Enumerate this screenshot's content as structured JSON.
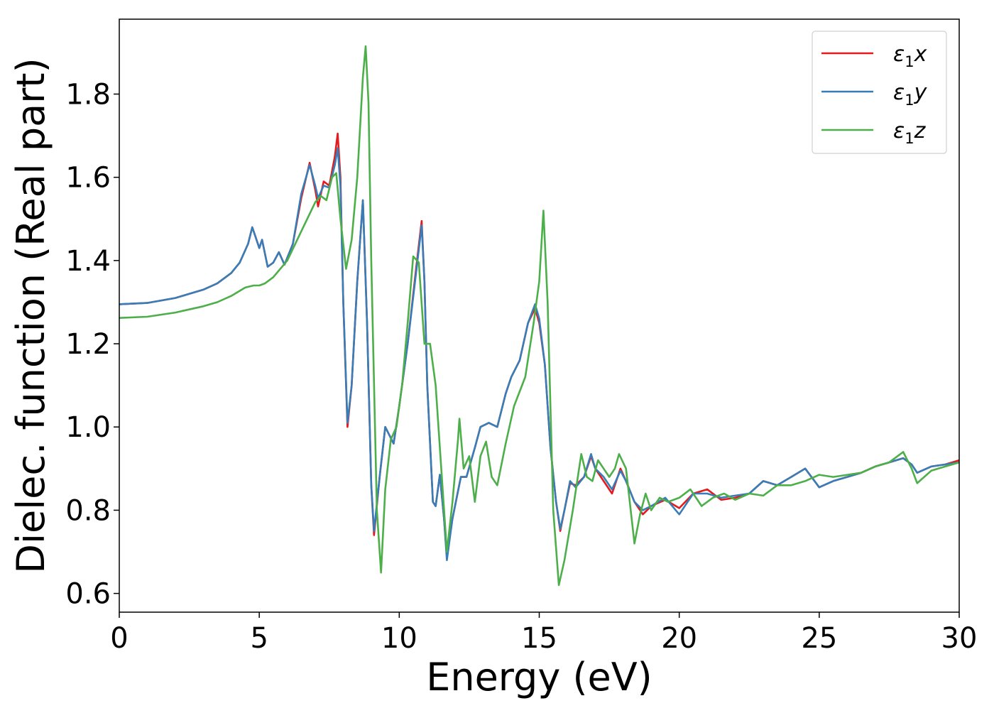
{
  "chart_data": {
    "type": "line",
    "title": "",
    "xlabel": "Energy (eV)",
    "ylabel": "Dielec. function (Real part)",
    "xlim": [
      0,
      30
    ],
    "ylim": [
      0.555,
      1.98
    ],
    "xticks": [
      0,
      5,
      10,
      15,
      20,
      25,
      30
    ],
    "xtick_labels": [
      "0",
      "5",
      "10",
      "15",
      "20",
      "25",
      "30"
    ],
    "yticks": [
      0.6,
      0.8,
      1.0,
      1.2,
      1.4,
      1.6,
      1.8
    ],
    "ytick_labels": [
      "0.6",
      "0.8",
      "1.0",
      "1.2",
      "1.4",
      "1.6",
      "1.8"
    ],
    "grid": false,
    "legend_position": "top-right",
    "series": [
      {
        "name": "ε₁x",
        "legend": {
          "base": "ε",
          "sub": "1",
          "suffix": "x"
        },
        "color": "#e41a1c",
        "points": [
          [
            0,
            1.295
          ],
          [
            1,
            1.298
          ],
          [
            2,
            1.31
          ],
          [
            3,
            1.33
          ],
          [
            3.5,
            1.345
          ],
          [
            4,
            1.37
          ],
          [
            4.3,
            1.395
          ],
          [
            4.6,
            1.44
          ],
          [
            4.75,
            1.48
          ],
          [
            4.85,
            1.46
          ],
          [
            5,
            1.43
          ],
          [
            5.1,
            1.45
          ],
          [
            5.3,
            1.385
          ],
          [
            5.5,
            1.395
          ],
          [
            5.7,
            1.42
          ],
          [
            5.9,
            1.39
          ],
          [
            6.2,
            1.44
          ],
          [
            6.5,
            1.55
          ],
          [
            6.8,
            1.635
          ],
          [
            7.0,
            1.57
          ],
          [
            7.1,
            1.53
          ],
          [
            7.3,
            1.59
          ],
          [
            7.5,
            1.58
          ],
          [
            7.7,
            1.65
          ],
          [
            7.8,
            1.705
          ],
          [
            7.9,
            1.6
          ],
          [
            8.0,
            1.3
          ],
          [
            8.15,
            1.0
          ],
          [
            8.3,
            1.1
          ],
          [
            8.5,
            1.35
          ],
          [
            8.7,
            1.545
          ],
          [
            8.85,
            1.25
          ],
          [
            9.0,
            0.86
          ],
          [
            9.1,
            0.74
          ],
          [
            9.3,
            0.88
          ],
          [
            9.5,
            1.0
          ],
          [
            9.8,
            0.96
          ],
          [
            10.0,
            1.05
          ],
          [
            10.3,
            1.2
          ],
          [
            10.6,
            1.38
          ],
          [
            10.8,
            1.495
          ],
          [
            10.9,
            1.35
          ],
          [
            11.0,
            1.1
          ],
          [
            11.2,
            0.82
          ],
          [
            11.3,
            0.81
          ],
          [
            11.45,
            0.885
          ],
          [
            11.6,
            0.78
          ],
          [
            11.7,
            0.69
          ],
          [
            11.9,
            0.78
          ],
          [
            12.2,
            0.88
          ],
          [
            12.4,
            0.88
          ],
          [
            12.7,
            0.95
          ],
          [
            12.9,
            1.0
          ],
          [
            13.2,
            1.01
          ],
          [
            13.5,
            1.0
          ],
          [
            13.8,
            1.08
          ],
          [
            14.0,
            1.12
          ],
          [
            14.3,
            1.16
          ],
          [
            14.6,
            1.25
          ],
          [
            14.85,
            1.285
          ],
          [
            15.0,
            1.25
          ],
          [
            15.2,
            1.15
          ],
          [
            15.4,
            0.95
          ],
          [
            15.6,
            0.82
          ],
          [
            15.75,
            0.75
          ],
          [
            15.9,
            0.8
          ],
          [
            16.1,
            0.865
          ],
          [
            16.3,
            0.86
          ],
          [
            16.6,
            0.88
          ],
          [
            16.85,
            0.93
          ],
          [
            17.0,
            0.9
          ],
          [
            17.3,
            0.87
          ],
          [
            17.6,
            0.84
          ],
          [
            17.9,
            0.9
          ],
          [
            18.1,
            0.87
          ],
          [
            18.4,
            0.82
          ],
          [
            18.7,
            0.79
          ],
          [
            19.0,
            0.81
          ],
          [
            19.5,
            0.825
          ],
          [
            20.0,
            0.805
          ],
          [
            20.5,
            0.84
          ],
          [
            21.0,
            0.85
          ],
          [
            21.5,
            0.825
          ],
          [
            22.0,
            0.83
          ],
          [
            22.5,
            0.84
          ],
          [
            23.0,
            0.87
          ],
          [
            23.5,
            0.86
          ],
          [
            24.0,
            0.88
          ],
          [
            24.5,
            0.9
          ],
          [
            25.0,
            0.855
          ],
          [
            25.5,
            0.87
          ],
          [
            26.0,
            0.88
          ],
          [
            26.5,
            0.89
          ],
          [
            27.0,
            0.905
          ],
          [
            27.5,
            0.915
          ],
          [
            28.0,
            0.925
          ],
          [
            28.3,
            0.91
          ],
          [
            28.5,
            0.89
          ],
          [
            29.0,
            0.905
          ],
          [
            29.5,
            0.91
          ],
          [
            30.0,
            0.92
          ]
        ]
      },
      {
        "name": "ε₁y",
        "legend": {
          "base": "ε",
          "sub": "1",
          "suffix": "y"
        },
        "color": "#377eb8",
        "points": [
          [
            0,
            1.295
          ],
          [
            1,
            1.298
          ],
          [
            2,
            1.31
          ],
          [
            3,
            1.33
          ],
          [
            3.5,
            1.345
          ],
          [
            4,
            1.37
          ],
          [
            4.3,
            1.395
          ],
          [
            4.6,
            1.44
          ],
          [
            4.75,
            1.48
          ],
          [
            4.85,
            1.46
          ],
          [
            5,
            1.43
          ],
          [
            5.1,
            1.45
          ],
          [
            5.3,
            1.385
          ],
          [
            5.5,
            1.395
          ],
          [
            5.7,
            1.42
          ],
          [
            5.9,
            1.39
          ],
          [
            6.2,
            1.44
          ],
          [
            6.5,
            1.56
          ],
          [
            6.8,
            1.63
          ],
          [
            7.0,
            1.58
          ],
          [
            7.1,
            1.55
          ],
          [
            7.3,
            1.58
          ],
          [
            7.5,
            1.575
          ],
          [
            7.7,
            1.63
          ],
          [
            7.8,
            1.67
          ],
          [
            7.9,
            1.58
          ],
          [
            8.0,
            1.3
          ],
          [
            8.15,
            1.01
          ],
          [
            8.3,
            1.1
          ],
          [
            8.5,
            1.35
          ],
          [
            8.7,
            1.545
          ],
          [
            8.85,
            1.25
          ],
          [
            9.0,
            0.86
          ],
          [
            9.1,
            0.75
          ],
          [
            9.3,
            0.88
          ],
          [
            9.5,
            1.0
          ],
          [
            9.8,
            0.96
          ],
          [
            10.0,
            1.05
          ],
          [
            10.3,
            1.2
          ],
          [
            10.6,
            1.37
          ],
          [
            10.8,
            1.485
          ],
          [
            10.9,
            1.35
          ],
          [
            11.0,
            1.1
          ],
          [
            11.2,
            0.82
          ],
          [
            11.3,
            0.81
          ],
          [
            11.45,
            0.885
          ],
          [
            11.6,
            0.78
          ],
          [
            11.7,
            0.68
          ],
          [
            11.9,
            0.78
          ],
          [
            12.2,
            0.88
          ],
          [
            12.4,
            0.88
          ],
          [
            12.7,
            0.95
          ],
          [
            12.9,
            1.0
          ],
          [
            13.2,
            1.01
          ],
          [
            13.5,
            1.0
          ],
          [
            13.8,
            1.08
          ],
          [
            14.0,
            1.12
          ],
          [
            14.3,
            1.16
          ],
          [
            14.6,
            1.25
          ],
          [
            14.85,
            1.295
          ],
          [
            15.0,
            1.26
          ],
          [
            15.2,
            1.15
          ],
          [
            15.4,
            0.95
          ],
          [
            15.6,
            0.82
          ],
          [
            15.75,
            0.755
          ],
          [
            15.9,
            0.8
          ],
          [
            16.1,
            0.87
          ],
          [
            16.3,
            0.855
          ],
          [
            16.6,
            0.88
          ],
          [
            16.85,
            0.935
          ],
          [
            17.0,
            0.9
          ],
          [
            17.3,
            0.88
          ],
          [
            17.6,
            0.85
          ],
          [
            17.9,
            0.895
          ],
          [
            18.1,
            0.87
          ],
          [
            18.4,
            0.82
          ],
          [
            18.7,
            0.8
          ],
          [
            19.0,
            0.81
          ],
          [
            19.5,
            0.83
          ],
          [
            20.0,
            0.79
          ],
          [
            20.5,
            0.84
          ],
          [
            21.0,
            0.84
          ],
          [
            21.5,
            0.83
          ],
          [
            22.0,
            0.835
          ],
          [
            22.5,
            0.84
          ],
          [
            23.0,
            0.87
          ],
          [
            23.5,
            0.86
          ],
          [
            24.0,
            0.88
          ],
          [
            24.5,
            0.9
          ],
          [
            25.0,
            0.855
          ],
          [
            25.5,
            0.87
          ],
          [
            26.0,
            0.88
          ],
          [
            26.5,
            0.89
          ],
          [
            27.0,
            0.905
          ],
          [
            27.5,
            0.915
          ],
          [
            28.0,
            0.925
          ],
          [
            28.3,
            0.91
          ],
          [
            28.5,
            0.89
          ],
          [
            29.0,
            0.905
          ],
          [
            29.5,
            0.91
          ],
          [
            30.0,
            0.915
          ]
        ]
      },
      {
        "name": "ε₁z",
        "legend": {
          "base": "ε",
          "sub": "1",
          "suffix": "z"
        },
        "color": "#4daf4a",
        "points": [
          [
            0,
            1.262
          ],
          [
            1,
            1.265
          ],
          [
            2,
            1.275
          ],
          [
            3,
            1.29
          ],
          [
            3.5,
            1.3
          ],
          [
            4,
            1.315
          ],
          [
            4.5,
            1.335
          ],
          [
            4.8,
            1.34
          ],
          [
            5.0,
            1.34
          ],
          [
            5.2,
            1.345
          ],
          [
            5.5,
            1.36
          ],
          [
            6.0,
            1.4
          ],
          [
            6.5,
            1.47
          ],
          [
            7.0,
            1.54
          ],
          [
            7.2,
            1.555
          ],
          [
            7.4,
            1.545
          ],
          [
            7.6,
            1.6
          ],
          [
            7.75,
            1.61
          ],
          [
            7.9,
            1.5
          ],
          [
            8.1,
            1.38
          ],
          [
            8.3,
            1.45
          ],
          [
            8.5,
            1.6
          ],
          [
            8.7,
            1.84
          ],
          [
            8.8,
            1.915
          ],
          [
            8.9,
            1.78
          ],
          [
            9.0,
            1.4
          ],
          [
            9.2,
            0.8
          ],
          [
            9.35,
            0.65
          ],
          [
            9.5,
            0.85
          ],
          [
            9.7,
            0.97
          ],
          [
            9.9,
            1.0
          ],
          [
            10.1,
            1.1
          ],
          [
            10.3,
            1.25
          ],
          [
            10.5,
            1.41
          ],
          [
            10.7,
            1.395
          ],
          [
            10.9,
            1.2
          ],
          [
            11.1,
            1.2
          ],
          [
            11.3,
            1.1
          ],
          [
            11.5,
            0.9
          ],
          [
            11.7,
            0.7
          ],
          [
            11.9,
            0.82
          ],
          [
            12.1,
            0.97
          ],
          [
            12.15,
            1.02
          ],
          [
            12.3,
            0.9
          ],
          [
            12.5,
            0.93
          ],
          [
            12.7,
            0.82
          ],
          [
            12.9,
            0.93
          ],
          [
            13.1,
            0.965
          ],
          [
            13.3,
            0.88
          ],
          [
            13.5,
            0.86
          ],
          [
            13.8,
            0.96
          ],
          [
            14.1,
            1.05
          ],
          [
            14.5,
            1.12
          ],
          [
            14.8,
            1.25
          ],
          [
            15.0,
            1.35
          ],
          [
            15.15,
            1.52
          ],
          [
            15.3,
            1.3
          ],
          [
            15.5,
            0.8
          ],
          [
            15.7,
            0.62
          ],
          [
            15.9,
            0.68
          ],
          [
            16.2,
            0.8
          ],
          [
            16.5,
            0.935
          ],
          [
            16.7,
            0.88
          ],
          [
            16.9,
            0.87
          ],
          [
            17.1,
            0.92
          ],
          [
            17.3,
            0.9
          ],
          [
            17.5,
            0.88
          ],
          [
            17.7,
            0.9
          ],
          [
            17.85,
            0.935
          ],
          [
            18.1,
            0.9
          ],
          [
            18.4,
            0.72
          ],
          [
            18.6,
            0.79
          ],
          [
            18.8,
            0.84
          ],
          [
            19.0,
            0.8
          ],
          [
            19.3,
            0.83
          ],
          [
            19.6,
            0.82
          ],
          [
            20.0,
            0.83
          ],
          [
            20.4,
            0.85
          ],
          [
            20.8,
            0.81
          ],
          [
            21.2,
            0.83
          ],
          [
            21.6,
            0.84
          ],
          [
            22.0,
            0.825
          ],
          [
            22.5,
            0.84
          ],
          [
            23.0,
            0.835
          ],
          [
            23.5,
            0.86
          ],
          [
            24.0,
            0.86
          ],
          [
            24.5,
            0.87
          ],
          [
            25.0,
            0.885
          ],
          [
            25.5,
            0.88
          ],
          [
            26.0,
            0.885
          ],
          [
            26.5,
            0.89
          ],
          [
            27.0,
            0.905
          ],
          [
            27.5,
            0.915
          ],
          [
            28.0,
            0.94
          ],
          [
            28.3,
            0.9
          ],
          [
            28.5,
            0.865
          ],
          [
            29.0,
            0.895
          ],
          [
            29.5,
            0.905
          ],
          [
            30.0,
            0.915
          ]
        ]
      }
    ]
  }
}
